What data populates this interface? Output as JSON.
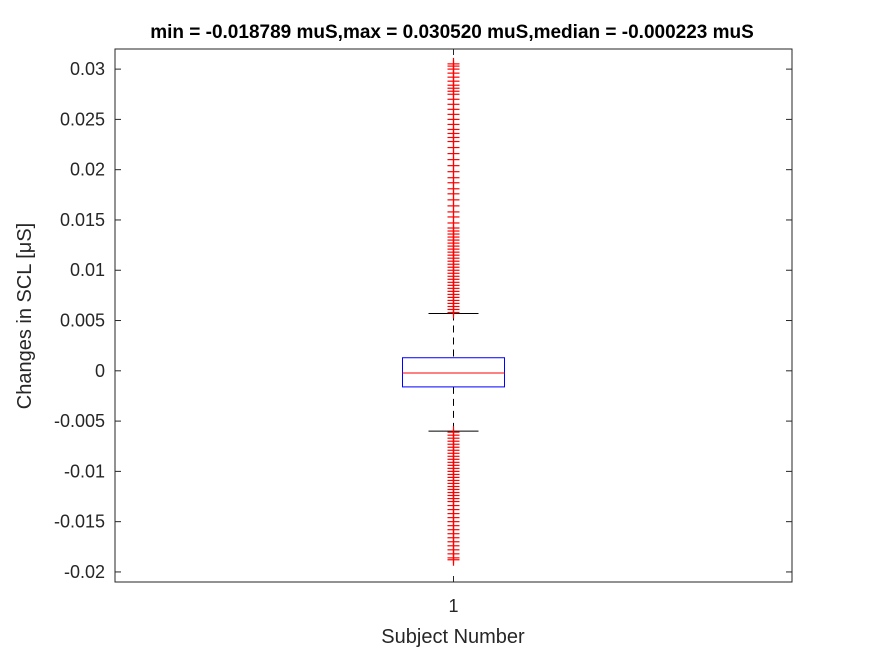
{
  "chart_data": {
    "type": "box",
    "title": "min = -0.018789 muS,max = 0.030520 muS,median = -0.000223 muS",
    "xlabel": "Subject Number",
    "ylabel": "Changes in SCL [μS]",
    "categories": [
      "1"
    ],
    "ylim": [
      -0.021,
      0.032
    ],
    "yticks": [
      0.03,
      0.025,
      0.02,
      0.015,
      0.01,
      0.005,
      0,
      -0.005,
      -0.01,
      -0.015,
      -0.02
    ],
    "ytick_labels": [
      "0.03",
      "0.025",
      "0.02",
      "0.015",
      "0.01",
      "0.005",
      "0",
      "-0.005",
      "-0.01",
      "-0.015",
      "-0.02"
    ],
    "grid": false,
    "box": {
      "median": -0.000223,
      "q1": -0.0016,
      "q3": 0.0013,
      "whisker_low": -0.006,
      "whisker_high": 0.0057,
      "min": -0.018789,
      "max": 0.03052
    },
    "outliers_high": [
      0.0058,
      0.0061,
      0.0064,
      0.0067,
      0.007,
      0.0073,
      0.0076,
      0.0079,
      0.0082,
      0.0085,
      0.0088,
      0.0091,
      0.0094,
      0.0097,
      0.01,
      0.0103,
      0.0106,
      0.0109,
      0.0112,
      0.0115,
      0.0118,
      0.0121,
      0.0124,
      0.0127,
      0.013,
      0.0133,
      0.0136,
      0.0139,
      0.0142,
      0.0147,
      0.0153,
      0.0158,
      0.0164,
      0.017,
      0.0176,
      0.0181,
      0.0187,
      0.0192,
      0.0198,
      0.0204,
      0.021,
      0.0216,
      0.0222,
      0.0228,
      0.0232,
      0.0236,
      0.024,
      0.0245,
      0.025,
      0.0255,
      0.026,
      0.0265,
      0.027,
      0.0275,
      0.0278,
      0.0281,
      0.0284,
      0.0288,
      0.0292,
      0.0296,
      0.03,
      0.0303,
      0.03052
    ],
    "outliers_low": [
      -0.0061,
      -0.0064,
      -0.0067,
      -0.007,
      -0.0073,
      -0.0076,
      -0.0079,
      -0.0082,
      -0.0085,
      -0.0088,
      -0.0091,
      -0.0094,
      -0.0097,
      -0.01,
      -0.0103,
      -0.0106,
      -0.0109,
      -0.0112,
      -0.0115,
      -0.0118,
      -0.0121,
      -0.0124,
      -0.0127,
      -0.013,
      -0.0134,
      -0.0138,
      -0.0142,
      -0.0146,
      -0.015,
      -0.0154,
      -0.0158,
      -0.0162,
      -0.0166,
      -0.017,
      -0.0174,
      -0.0178,
      -0.0182,
      -0.0186,
      -0.018789
    ],
    "colors": {
      "box": "#0000ff",
      "median": "#ff0000",
      "whisker": "#000000",
      "outlier": "#ff0000",
      "axes": "#262626"
    }
  }
}
